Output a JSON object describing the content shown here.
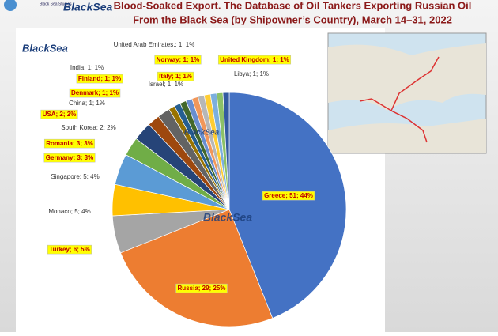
{
  "header": {
    "logo": "BlackSea",
    "logo_sub": "Black Sea Studies",
    "title_lines": [
      "Blood-Soaked Export. The Database of Oil Tankers Exporting Russian Oil",
      "From the Black Sea (by Shipowner’s Country), March 14–31, 2022"
    ]
  },
  "watermark": "BlackSea",
  "chart_data": {
    "type": "pie",
    "values": [
      51,
      29,
      6,
      5,
      5,
      3,
      3,
      2,
      2,
      1,
      1,
      1,
      1,
      1,
      1,
      1,
      1,
      1,
      1
    ],
    "value_labels": [
      "Greece; 51; 44%",
      "Russia; 29; 25%",
      "Turkey; 6; 5%",
      "Monaco; 5; 4%",
      "Singapore; 5; 4%",
      "Germany; 3; 3%",
      "Romania; 3; 3%",
      "South Korea; 2; 2%",
      "USA; 2; 2%",
      "China; 1; 1%",
      "Denmark; 1; 1%",
      "Finland; 1; 1%",
      "India; 1; 1%",
      "Israel; 1; 1%",
      "United Arab Emirates.; 1; 1%",
      "Italy; 1; 1%",
      "Norway; 1; 1%",
      "United Kingdom; 1; 1%",
      "Libya; 1; 1%"
    ],
    "highlighted": [
      true,
      true,
      true,
      false,
      false,
      true,
      true,
      false,
      true,
      false,
      true,
      true,
      false,
      false,
      false,
      true,
      true,
      true,
      false
    ],
    "colors": [
      "#4472c4",
      "#ed7d31",
      "#a5a5a5",
      "#ffc000",
      "#5b9bd5",
      "#70ad47",
      "#264478",
      "#9e480e",
      "#636363",
      "#997300",
      "#255e91",
      "#43682b",
      "#698ed0",
      "#f1975a",
      "#b7b7b7",
      "#ffcd33",
      "#7cafdd",
      "#8cc168",
      "#335aa1"
    ]
  }
}
